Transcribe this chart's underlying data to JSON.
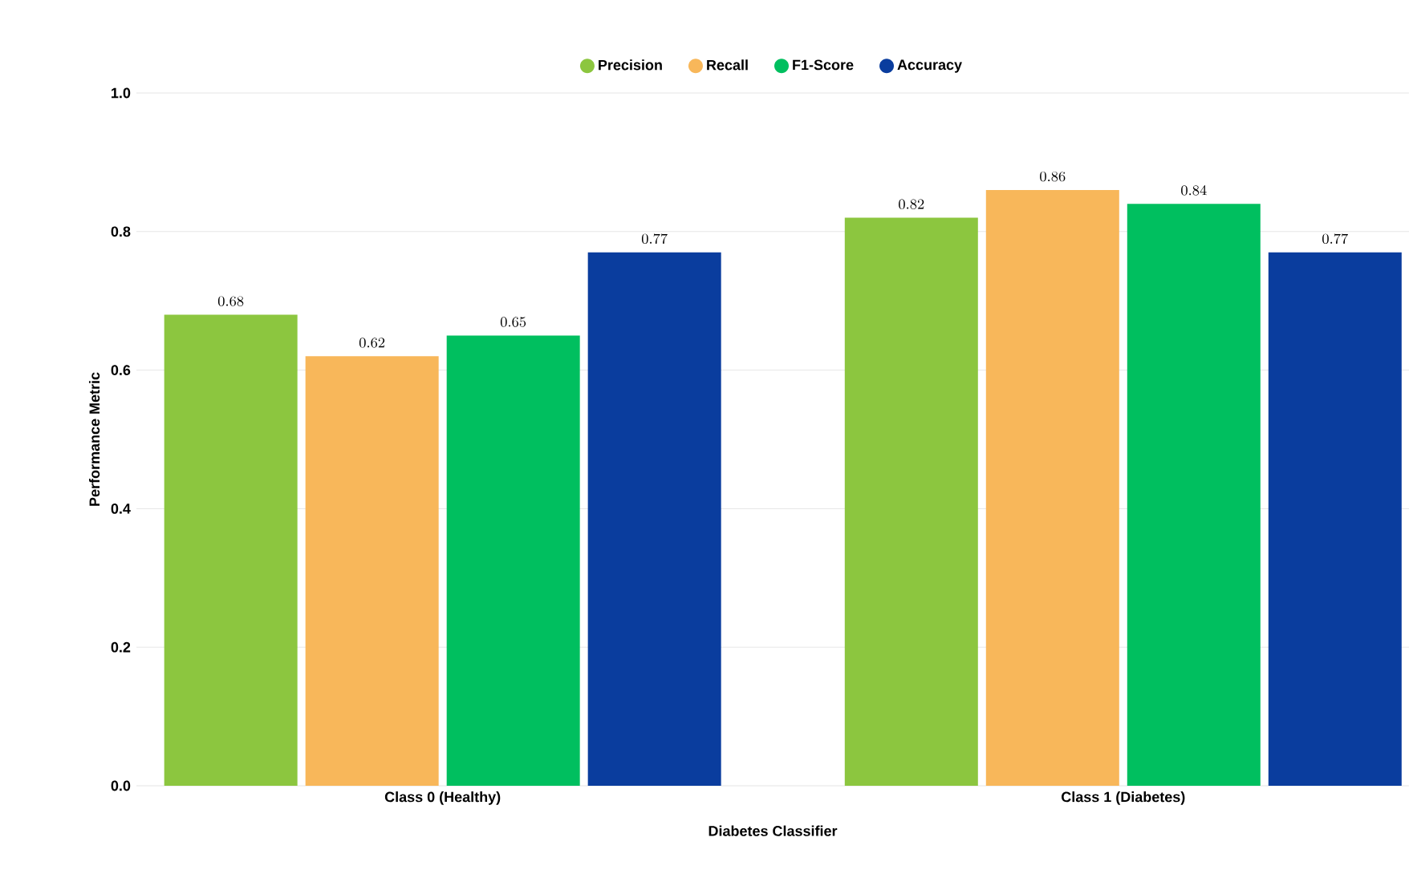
{
  "chart_data": {
    "type": "bar",
    "xlabel": "Diabetes Classifier",
    "ylabel": "Performance Metric",
    "categories": [
      "Class 0 (Healthy)",
      "Class 1 (Diabetes)"
    ],
    "series": [
      {
        "name": "Precision",
        "color": "#8cc63f",
        "values": [
          0.68,
          0.82
        ]
      },
      {
        "name": "Recall",
        "color": "#f8b75a",
        "values": [
          0.62,
          0.86
        ]
      },
      {
        "name": "F1-Score",
        "color": "#00bf5f",
        "values": [
          0.65,
          0.84
        ]
      },
      {
        "name": "Accuracy",
        "color": "#0a3d9e",
        "values": [
          0.77,
          0.77
        ]
      }
    ],
    "ylim": [
      0,
      1.0
    ],
    "yticks": [
      {
        "value": 0,
        "label": "0.0"
      },
      0.2,
      0.4,
      0.6,
      0.8,
      {
        "value": 1.0,
        "label": "1.0"
      }
    ],
    "grid": "y",
    "legend": "top",
    "data_labels": true
  }
}
